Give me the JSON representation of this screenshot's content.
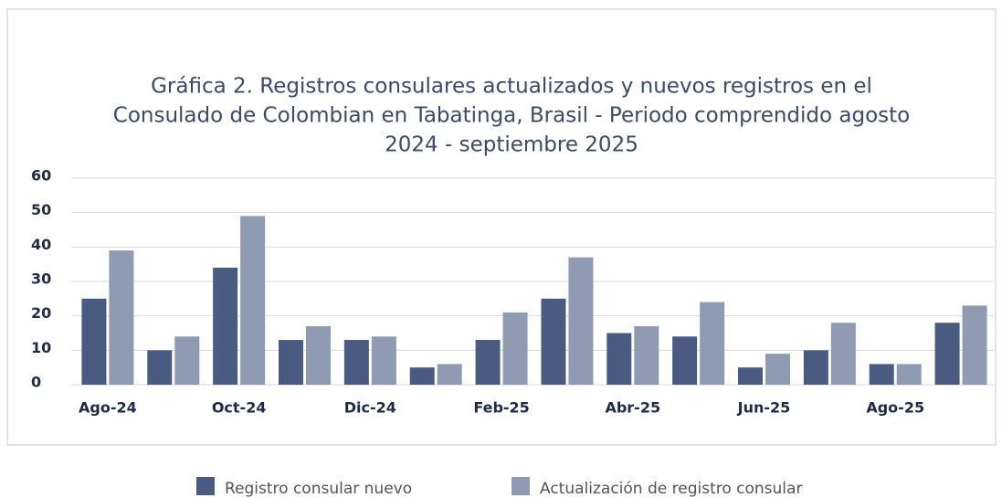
{
  "chart_data": {
    "type": "bar",
    "title": [
      "Gráfica 2. Registros consulares actualizados y nuevos registros en el",
      "Consulado de Colombian en Tabatinga, Brasil - Periodo comprendido agosto",
      "2024 - septiembre 2025"
    ],
    "categories": [
      "Ago-24",
      null,
      "Oct-24",
      null,
      "Dic-24",
      null,
      "Feb-25",
      null,
      "Abr-25",
      null,
      "Jun-25",
      null,
      "Ago-25",
      null
    ],
    "series": [
      {
        "name": "Registro consular nuevo",
        "color": "#4a5a80",
        "values": [
          25,
          10,
          34,
          13,
          13,
          5,
          13,
          25,
          15,
          14,
          5,
          10,
          6,
          18
        ]
      },
      {
        "name": "Actualización de registro consular",
        "color": "#8f9bb3",
        "values": [
          39,
          14,
          49,
          17,
          14,
          6,
          21,
          37,
          17,
          24,
          9,
          18,
          6,
          23
        ]
      }
    ],
    "ylim": [
      0,
      60
    ],
    "yticks": [
      0,
      10,
      20,
      30,
      40,
      50,
      60
    ],
    "grid": true,
    "legend": "bottom"
  }
}
